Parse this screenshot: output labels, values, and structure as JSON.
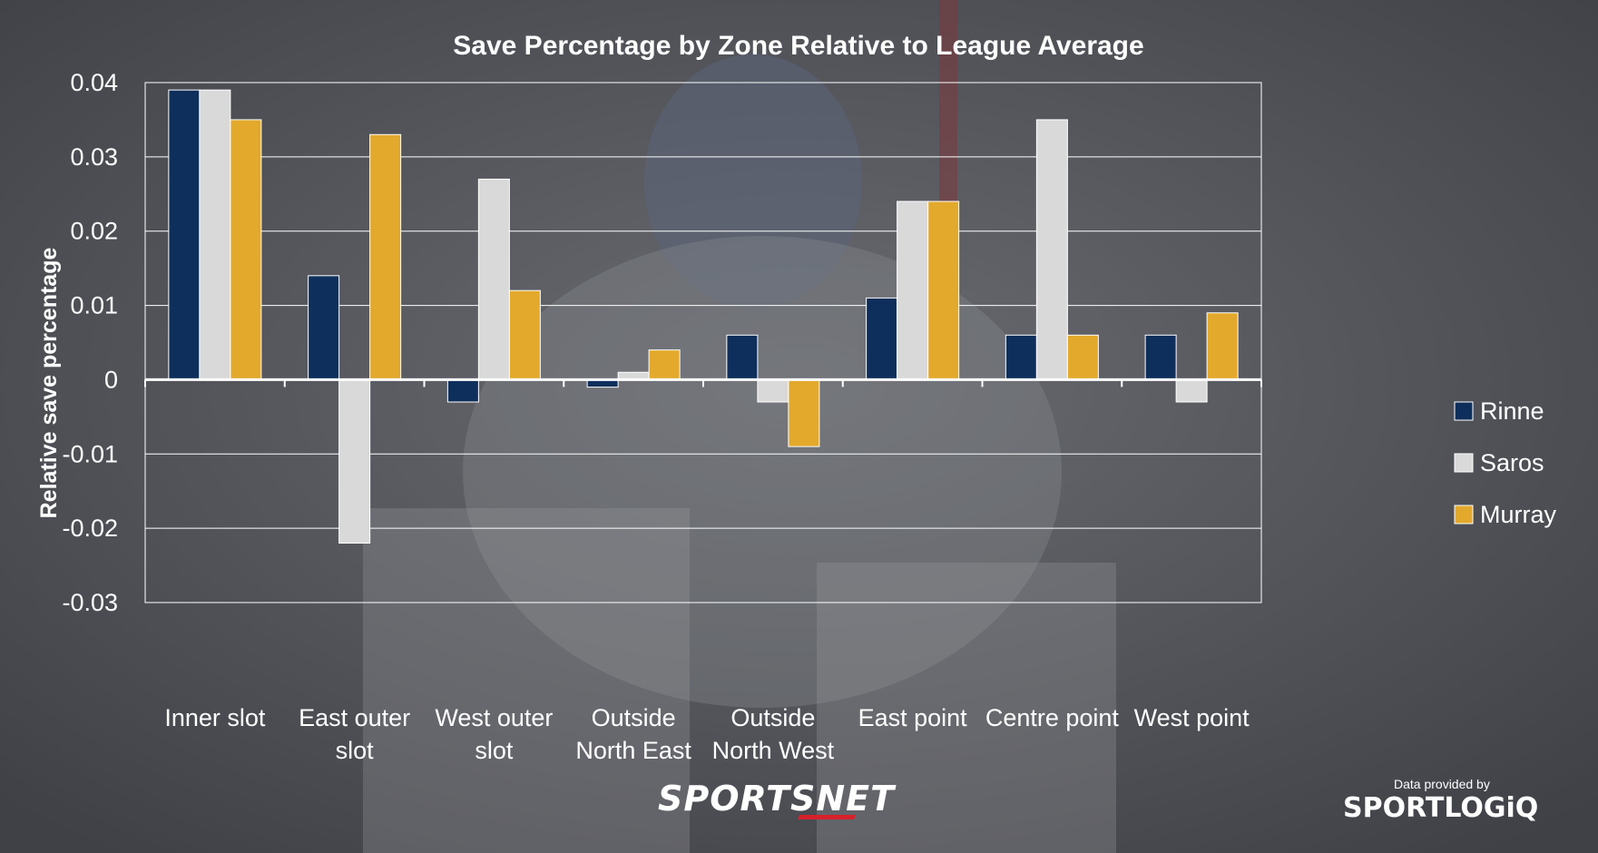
{
  "chart_data": {
    "type": "bar",
    "title": "Save Percentage by Zone Relative to League Average",
    "ylabel": "Relative save percentage",
    "xlabel": "",
    "ylim": [
      -0.03,
      0.04
    ],
    "yticks": [
      "0.04",
      "0.03",
      "0.02",
      "0.01",
      "0",
      "-0.01",
      "-0.02",
      "-0.03"
    ],
    "ytick_values": [
      0.04,
      0.03,
      0.02,
      0.01,
      0,
      -0.01,
      -0.02,
      -0.03
    ],
    "categories": [
      [
        "Inner slot"
      ],
      [
        "East outer",
        "slot"
      ],
      [
        "West outer",
        "slot"
      ],
      [
        "Outside",
        "North East"
      ],
      [
        "Outside",
        "North West"
      ],
      [
        "East point"
      ],
      [
        "Centre point"
      ],
      [
        "West point"
      ]
    ],
    "series": [
      {
        "name": "Rinne",
        "color": "#0e2f5c",
        "values": [
          0.039,
          0.014,
          -0.003,
          -0.001,
          0.006,
          0.011,
          0.006,
          0.006
        ]
      },
      {
        "name": "Saros",
        "color": "#d9d9d9",
        "values": [
          0.039,
          -0.022,
          0.027,
          0.001,
          -0.003,
          0.024,
          0.035,
          -0.003
        ]
      },
      {
        "name": "Murray",
        "color": "#e3a92c",
        "values": [
          0.035,
          0.033,
          0.012,
          0.004,
          -0.009,
          0.024,
          0.006,
          0.009
        ]
      }
    ],
    "grid": true,
    "legend_position": "right"
  },
  "branding": {
    "sportsnet": "SPORTSNET",
    "provided_by": "Data provided by",
    "sportlogiq": "SPORTLOGiQ"
  }
}
